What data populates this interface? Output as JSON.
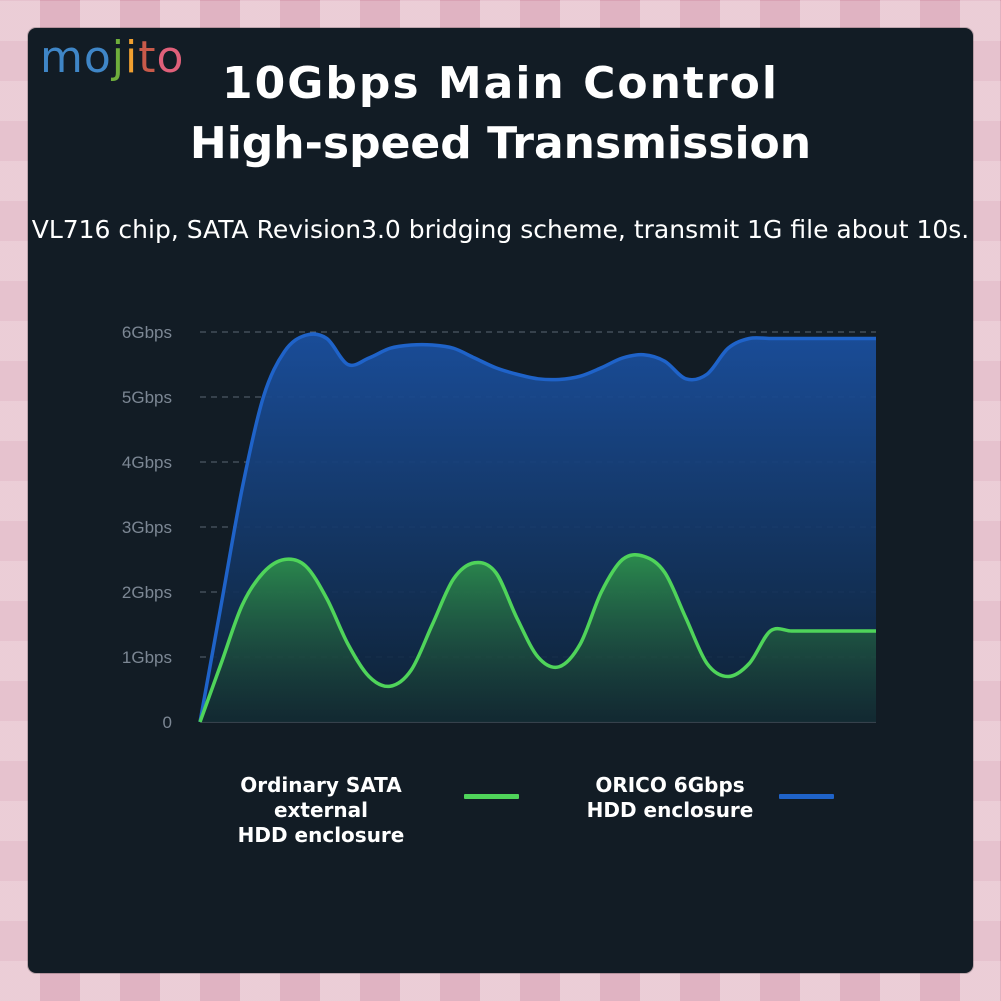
{
  "brand": {
    "logo_letters": [
      "m",
      "o",
      "j",
      "i",
      "t",
      "o"
    ],
    "logo_text": "MOJITO",
    "logo_colors": [
      "#3f86c7",
      "#3f86c7",
      "#6fae3c",
      "#f0a030",
      "#c85a4a",
      "#e0607a"
    ]
  },
  "header": {
    "title_line1": "10Gbps Main Control",
    "title_line2": "High-speed Transmission",
    "subtitle": "VL716 chip, SATA Revision3.0 bridging scheme, transmit 1G file about 10s."
  },
  "legend": {
    "green_label_line1": "Ordinary SATA external",
    "green_label_line2": "HDD enclosure",
    "blue_label_line1": "ORICO 6Gbps",
    "blue_label_line2": "HDD enclosure"
  },
  "colors": {
    "blue": "#1f63c9",
    "green": "#4fd45a",
    "panel": "#121c25"
  },
  "chart_data": {
    "type": "area",
    "title": "",
    "xlabel": "",
    "ylabel": "",
    "y_tick_labels": [
      "0",
      "1Gbps",
      "2Gbps",
      "3Gbps",
      "4Gbps",
      "5Gbps",
      "6Gbps"
    ],
    "ylim": [
      0,
      6
    ],
    "grid": true,
    "legend_position": "bottom",
    "x": [
      0,
      0.5,
      1,
      1.5,
      2,
      2.5,
      3,
      3.5,
      4,
      4.5,
      5,
      5.5,
      6,
      6.5,
      7,
      7.5,
      8,
      8.5,
      9,
      9.5,
      10,
      10.5,
      11,
      11.5,
      12,
      12.5,
      13,
      13.5,
      14,
      14.5,
      15,
      15.5,
      16
    ],
    "series": [
      {
        "name": "ORICO 6Gbps HDD enclosure",
        "color": "#1f63c9",
        "values": [
          0,
          1.8,
          3.6,
          5.0,
          5.7,
          5.95,
          5.9,
          5.5,
          5.6,
          5.75,
          5.8,
          5.8,
          5.75,
          5.6,
          5.45,
          5.35,
          5.28,
          5.27,
          5.32,
          5.45,
          5.6,
          5.65,
          5.55,
          5.28,
          5.35,
          5.75,
          5.9,
          5.9,
          5.9,
          5.9,
          5.9,
          5.9,
          5.9
        ]
      },
      {
        "name": "Ordinary SATA external HDD enclosure",
        "color": "#4fd45a",
        "values": [
          0,
          0.9,
          1.8,
          2.3,
          2.5,
          2.4,
          1.9,
          1.2,
          0.7,
          0.55,
          0.8,
          1.5,
          2.2,
          2.45,
          2.3,
          1.6,
          1.0,
          0.85,
          1.2,
          2.0,
          2.5,
          2.55,
          2.3,
          1.6,
          0.9,
          0.7,
          0.9,
          1.4,
          1.4,
          1.4,
          1.4,
          1.4,
          1.4
        ]
      }
    ]
  }
}
